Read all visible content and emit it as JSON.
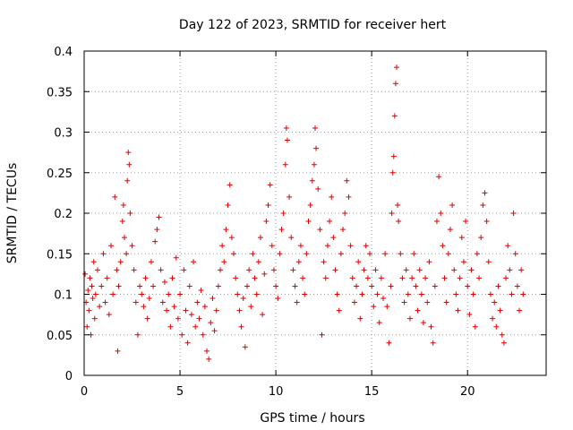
{
  "chart_data": {
    "type": "scatter",
    "title": "Day 122 of 2023, SRMTID for receiver hert",
    "xlabel": "GPS time / hours",
    "ylabel": "SRMTID / TECUs",
    "xlim": [
      0,
      24.1
    ],
    "ylim": [
      0,
      0.4
    ],
    "xticks": [
      0,
      5,
      10,
      15,
      20
    ],
    "yticks": [
      0,
      0.05,
      0.1,
      0.15,
      0.2,
      0.25,
      0.3,
      0.35,
      0.4
    ],
    "xtick_labels": [
      "0",
      "5",
      "10",
      "15",
      "20"
    ],
    "ytick_labels": [
      "0",
      "0.05",
      "0.1",
      "0.15",
      "0.2",
      "0.25",
      "0.3",
      "0.35",
      "0.4"
    ],
    "grid": true,
    "marker": "+",
    "marker_color": "#e00000",
    "series": [
      {
        "name": "SRMTID",
        "points": [
          [
            0.05,
            0.125
          ],
          [
            0.1,
            0.09
          ],
          [
            0.15,
            0.06
          ],
          [
            0.2,
            0.105
          ],
          [
            0.25,
            0.08
          ],
          [
            0.3,
            0.12
          ],
          [
            0.35,
            0.05
          ],
          [
            0.4,
            0.11
          ],
          [
            0.45,
            0.095
          ],
          [
            0.5,
            0.14
          ],
          [
            0.55,
            0.07
          ],
          [
            0.6,
            0.1
          ],
          [
            0.7,
            0.13
          ],
          [
            0.8,
            0.085
          ],
          [
            0.9,
            0.11
          ],
          [
            1.0,
            0.15
          ],
          [
            1.1,
            0.09
          ],
          [
            1.2,
            0.12
          ],
          [
            1.3,
            0.075
          ],
          [
            1.4,
            0.16
          ],
          [
            1.5,
            0.1
          ],
          [
            1.6,
            0.22
          ],
          [
            1.7,
            0.13
          ],
          [
            1.75,
            0.03
          ],
          [
            1.8,
            0.11
          ],
          [
            1.9,
            0.14
          ],
          [
            2.0,
            0.19
          ],
          [
            2.05,
            0.21
          ],
          [
            2.1,
            0.17
          ],
          [
            2.2,
            0.15
          ],
          [
            2.25,
            0.24
          ],
          [
            2.3,
            0.275
          ],
          [
            2.35,
            0.26
          ],
          [
            2.4,
            0.2
          ],
          [
            2.5,
            0.16
          ],
          [
            2.6,
            0.13
          ],
          [
            2.7,
            0.09
          ],
          [
            2.8,
            0.05
          ],
          [
            2.9,
            0.11
          ],
          [
            3.0,
            0.1
          ],
          [
            3.1,
            0.085
          ],
          [
            3.2,
            0.12
          ],
          [
            3.3,
            0.07
          ],
          [
            3.4,
            0.095
          ],
          [
            3.5,
            0.14
          ],
          [
            3.6,
            0.11
          ],
          [
            3.7,
            0.165
          ],
          [
            3.8,
            0.18
          ],
          [
            3.9,
            0.195
          ],
          [
            4.0,
            0.13
          ],
          [
            4.1,
            0.09
          ],
          [
            4.2,
            0.115
          ],
          [
            4.3,
            0.08
          ],
          [
            4.4,
            0.1
          ],
          [
            4.5,
            0.06
          ],
          [
            4.6,
            0.12
          ],
          [
            4.7,
            0.085
          ],
          [
            4.8,
            0.145
          ],
          [
            4.9,
            0.07
          ],
          [
            5.0,
            0.1
          ],
          [
            5.1,
            0.05
          ],
          [
            5.2,
            0.13
          ],
          [
            5.3,
            0.08
          ],
          [
            5.4,
            0.04
          ],
          [
            5.5,
            0.11
          ],
          [
            5.6,
            0.075
          ],
          [
            5.7,
            0.14
          ],
          [
            5.8,
            0.06
          ],
          [
            5.9,
            0.09
          ],
          [
            6.0,
            0.07
          ],
          [
            6.1,
            0.105
          ],
          [
            6.2,
            0.05
          ],
          [
            6.3,
            0.085
          ],
          [
            6.4,
            0.03
          ],
          [
            6.5,
            0.02
          ],
          [
            6.6,
            0.065
          ],
          [
            6.7,
            0.095
          ],
          [
            6.8,
            0.055
          ],
          [
            6.9,
            0.08
          ],
          [
            7.0,
            0.11
          ],
          [
            7.1,
            0.13
          ],
          [
            7.2,
            0.16
          ],
          [
            7.3,
            0.14
          ],
          [
            7.4,
            0.18
          ],
          [
            7.5,
            0.21
          ],
          [
            7.6,
            0.235
          ],
          [
            7.7,
            0.17
          ],
          [
            7.8,
            0.15
          ],
          [
            7.9,
            0.12
          ],
          [
            8.0,
            0.1
          ],
          [
            8.1,
            0.08
          ],
          [
            8.2,
            0.06
          ],
          [
            8.3,
            0.095
          ],
          [
            8.4,
            0.035
          ],
          [
            8.5,
            0.11
          ],
          [
            8.6,
            0.13
          ],
          [
            8.7,
            0.085
          ],
          [
            8.8,
            0.15
          ],
          [
            8.9,
            0.12
          ],
          [
            9.0,
            0.1
          ],
          [
            9.1,
            0.14
          ],
          [
            9.2,
            0.17
          ],
          [
            9.3,
            0.075
          ],
          [
            9.4,
            0.125
          ],
          [
            9.5,
            0.19
          ],
          [
            9.6,
            0.21
          ],
          [
            9.7,
            0.235
          ],
          [
            9.8,
            0.16
          ],
          [
            9.9,
            0.13
          ],
          [
            10.0,
            0.11
          ],
          [
            10.1,
            0.095
          ],
          [
            10.2,
            0.15
          ],
          [
            10.3,
            0.18
          ],
          [
            10.4,
            0.2
          ],
          [
            10.5,
            0.26
          ],
          [
            10.55,
            0.305
          ],
          [
            10.6,
            0.29
          ],
          [
            10.7,
            0.22
          ],
          [
            10.8,
            0.17
          ],
          [
            10.9,
            0.13
          ],
          [
            11.0,
            0.11
          ],
          [
            11.1,
            0.09
          ],
          [
            11.2,
            0.14
          ],
          [
            11.3,
            0.16
          ],
          [
            11.4,
            0.12
          ],
          [
            11.5,
            0.1
          ],
          [
            11.6,
            0.15
          ],
          [
            11.7,
            0.19
          ],
          [
            11.8,
            0.21
          ],
          [
            11.9,
            0.24
          ],
          [
            12.0,
            0.26
          ],
          [
            12.05,
            0.305
          ],
          [
            12.1,
            0.28
          ],
          [
            12.2,
            0.23
          ],
          [
            12.3,
            0.18
          ],
          [
            12.4,
            0.05
          ],
          [
            12.5,
            0.14
          ],
          [
            12.6,
            0.12
          ],
          [
            12.7,
            0.16
          ],
          [
            12.8,
            0.19
          ],
          [
            12.9,
            0.22
          ],
          [
            13.0,
            0.17
          ],
          [
            13.1,
            0.13
          ],
          [
            13.2,
            0.1
          ],
          [
            13.3,
            0.08
          ],
          [
            13.4,
            0.15
          ],
          [
            13.5,
            0.18
          ],
          [
            13.6,
            0.2
          ],
          [
            13.7,
            0.24
          ],
          [
            13.8,
            0.22
          ],
          [
            13.9,
            0.16
          ],
          [
            14.0,
            0.12
          ],
          [
            14.1,
            0.09
          ],
          [
            14.2,
            0.11
          ],
          [
            14.3,
            0.14
          ],
          [
            14.4,
            0.07
          ],
          [
            14.5,
            0.1
          ],
          [
            14.6,
            0.13
          ],
          [
            14.7,
            0.16
          ],
          [
            14.8,
            0.12
          ],
          [
            14.9,
            0.15
          ],
          [
            15.0,
            0.11
          ],
          [
            15.1,
            0.085
          ],
          [
            15.2,
            0.13
          ],
          [
            15.3,
            0.1
          ],
          [
            15.4,
            0.065
          ],
          [
            15.5,
            0.12
          ],
          [
            15.6,
            0.095
          ],
          [
            15.7,
            0.15
          ],
          [
            15.8,
            0.085
          ],
          [
            15.9,
            0.04
          ],
          [
            16.0,
            0.11
          ],
          [
            16.05,
            0.2
          ],
          [
            16.1,
            0.25
          ],
          [
            16.15,
            0.27
          ],
          [
            16.2,
            0.32
          ],
          [
            16.25,
            0.36
          ],
          [
            16.3,
            0.38
          ],
          [
            16.35,
            0.21
          ],
          [
            16.4,
            0.19
          ],
          [
            16.5,
            0.15
          ],
          [
            16.6,
            0.12
          ],
          [
            16.7,
            0.09
          ],
          [
            16.8,
            0.13
          ],
          [
            16.9,
            0.1
          ],
          [
            17.0,
            0.07
          ],
          [
            17.1,
            0.12
          ],
          [
            17.2,
            0.15
          ],
          [
            17.3,
            0.11
          ],
          [
            17.4,
            0.08
          ],
          [
            17.5,
            0.13
          ],
          [
            17.6,
            0.1
          ],
          [
            17.7,
            0.065
          ],
          [
            17.8,
            0.12
          ],
          [
            17.9,
            0.09
          ],
          [
            18.0,
            0.14
          ],
          [
            18.1,
            0.06
          ],
          [
            18.2,
            0.04
          ],
          [
            18.3,
            0.11
          ],
          [
            18.4,
            0.19
          ],
          [
            18.5,
            0.245
          ],
          [
            18.6,
            0.2
          ],
          [
            18.7,
            0.16
          ],
          [
            18.8,
            0.12
          ],
          [
            18.9,
            0.09
          ],
          [
            19.0,
            0.15
          ],
          [
            19.1,
            0.18
          ],
          [
            19.2,
            0.21
          ],
          [
            19.3,
            0.13
          ],
          [
            19.4,
            0.1
          ],
          [
            19.5,
            0.08
          ],
          [
            19.6,
            0.12
          ],
          [
            19.7,
            0.17
          ],
          [
            19.8,
            0.14
          ],
          [
            19.9,
            0.19
          ],
          [
            20.0,
            0.11
          ],
          [
            20.1,
            0.075
          ],
          [
            20.2,
            0.13
          ],
          [
            20.3,
            0.1
          ],
          [
            20.4,
            0.06
          ],
          [
            20.5,
            0.15
          ],
          [
            20.6,
            0.12
          ],
          [
            20.7,
            0.17
          ],
          [
            20.8,
            0.21
          ],
          [
            20.9,
            0.225
          ],
          [
            21.0,
            0.19
          ],
          [
            21.1,
            0.14
          ],
          [
            21.2,
            0.1
          ],
          [
            21.3,
            0.07
          ],
          [
            21.4,
            0.09
          ],
          [
            21.5,
            0.06
          ],
          [
            21.6,
            0.11
          ],
          [
            21.7,
            0.08
          ],
          [
            21.8,
            0.05
          ],
          [
            21.9,
            0.04
          ],
          [
            22.0,
            0.12
          ],
          [
            22.1,
            0.16
          ],
          [
            22.2,
            0.13
          ],
          [
            22.3,
            0.1
          ],
          [
            22.4,
            0.2
          ],
          [
            22.5,
            0.15
          ],
          [
            22.6,
            0.11
          ],
          [
            22.7,
            0.08
          ],
          [
            22.8,
            0.13
          ],
          [
            22.9,
            0.1
          ]
        ]
      }
    ]
  }
}
